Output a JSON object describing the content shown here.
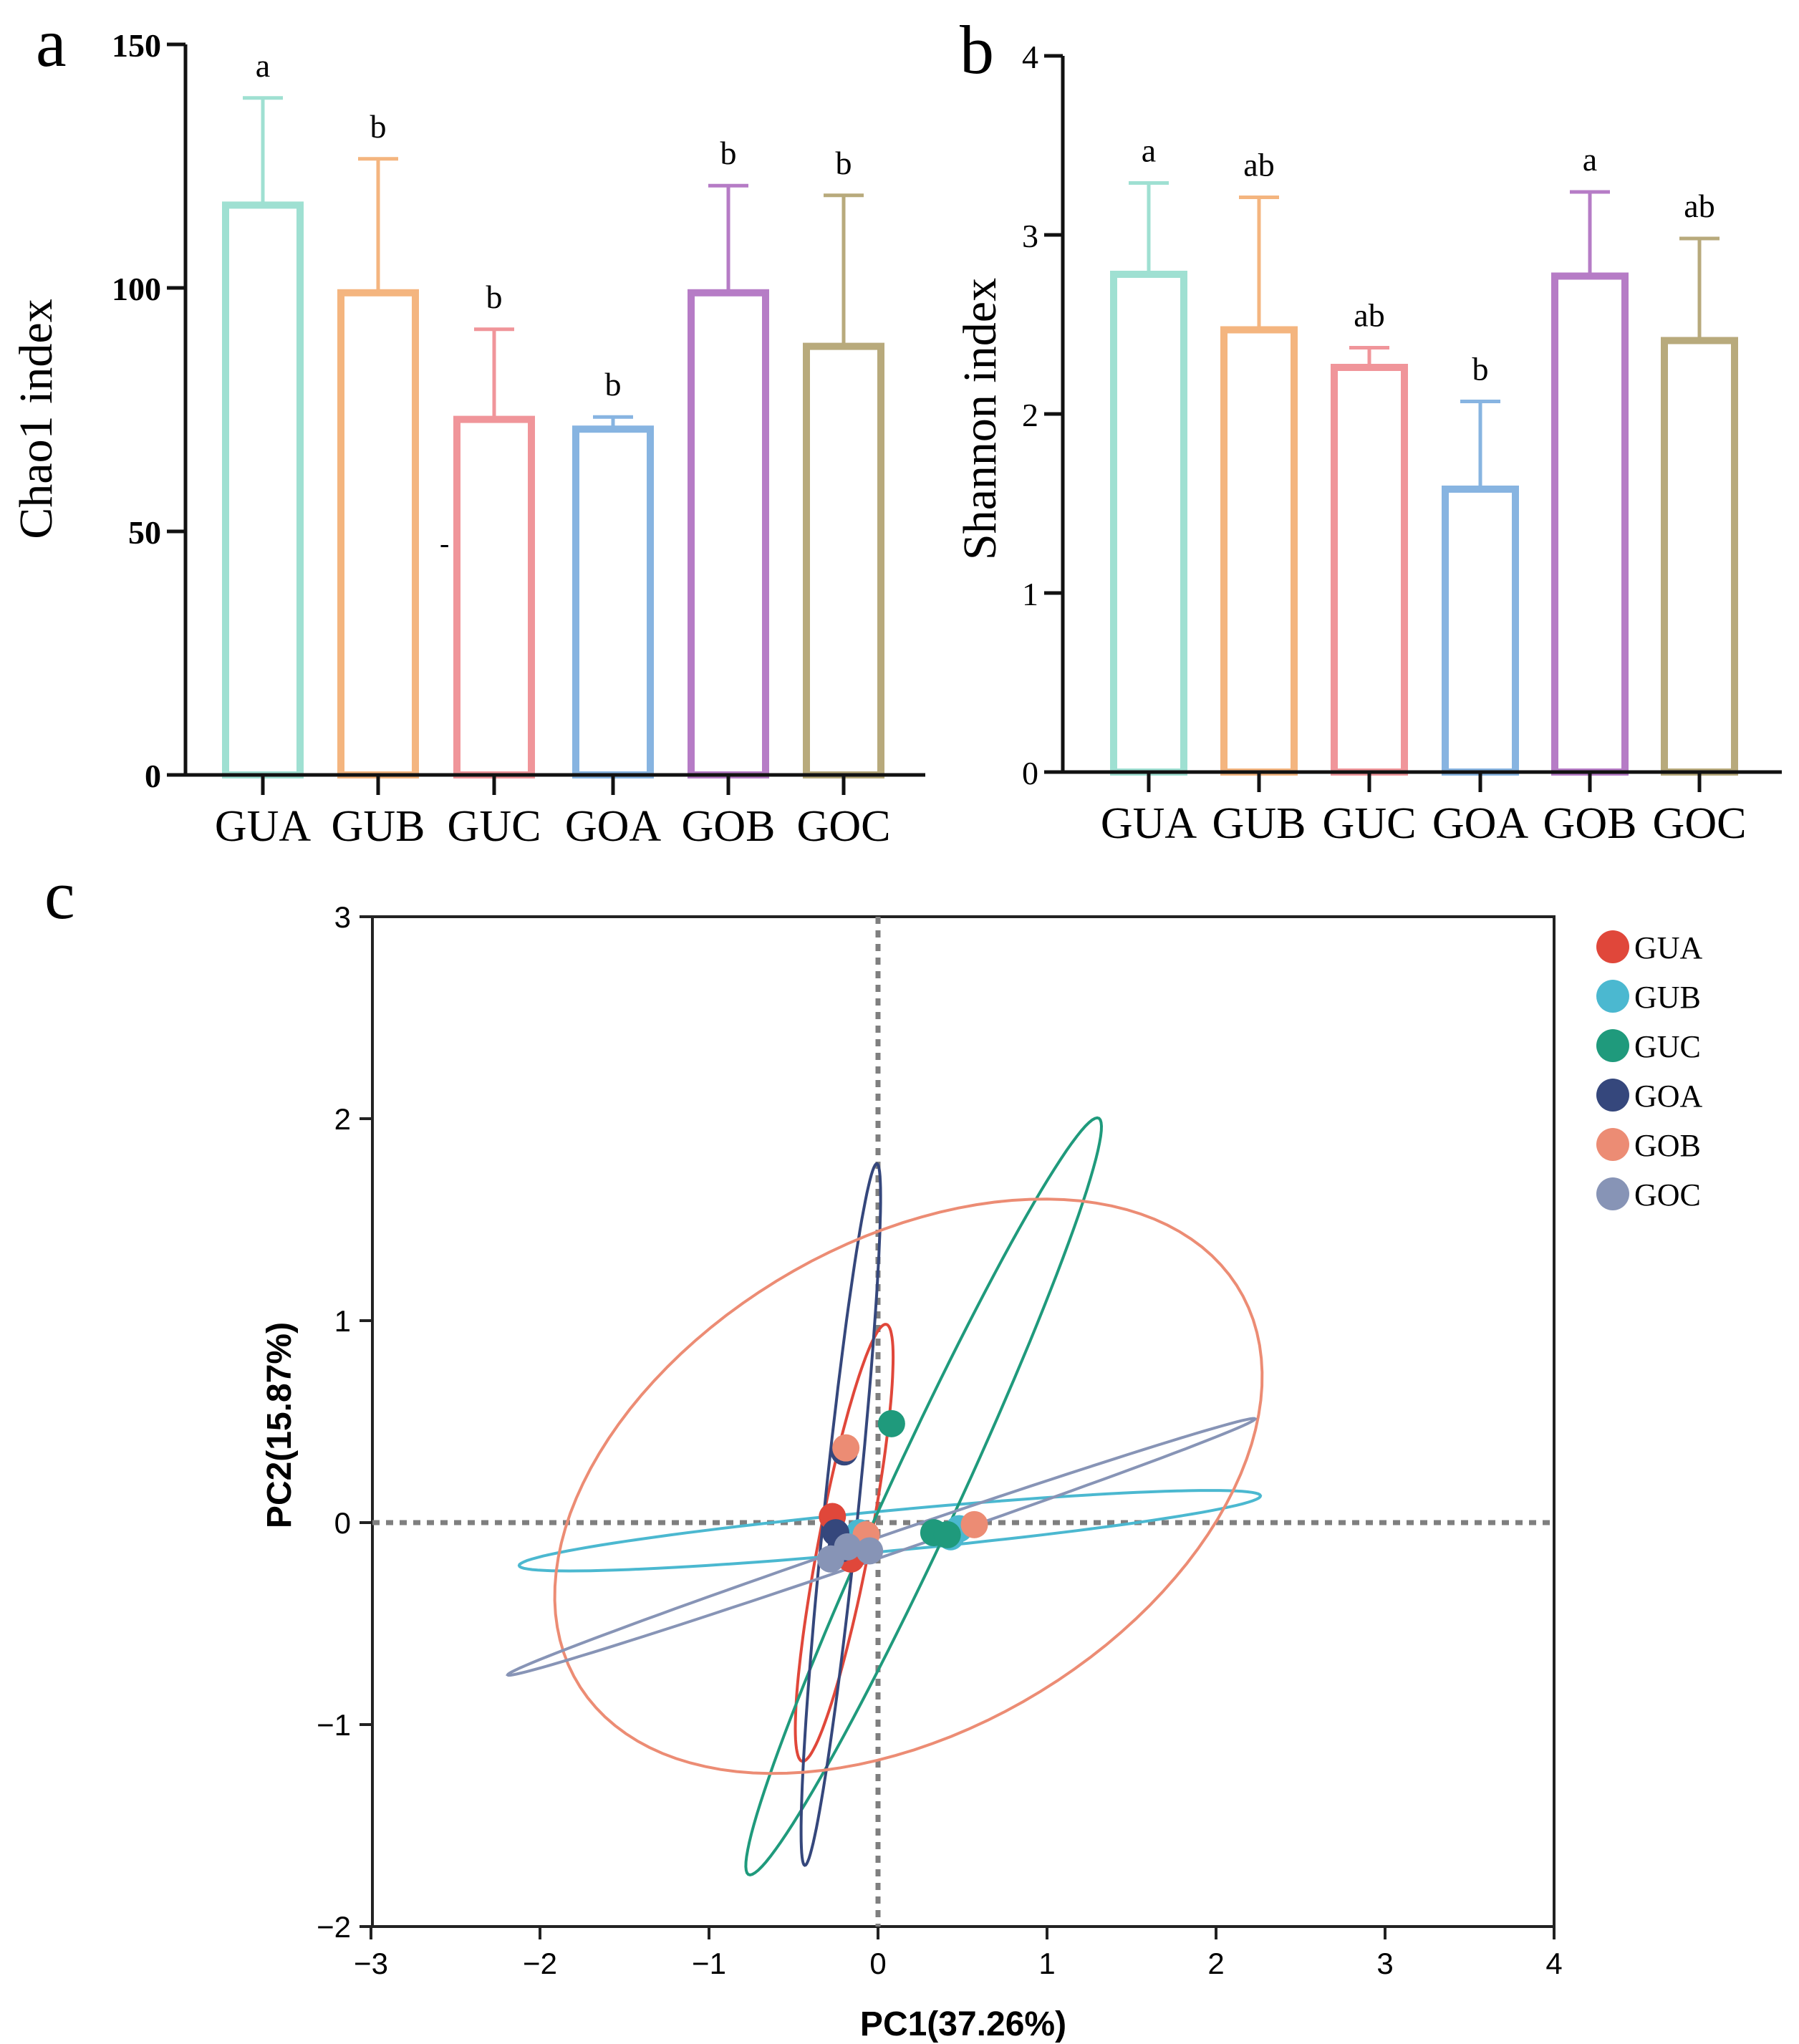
{
  "colors": {
    "axis": "#111111",
    "guide": "#7f7f7f",
    "GUA_bar": "#9fe0d2",
    "GUB_bar": "#f4b57f",
    "GUC_bar": "#f0959a",
    "GOA_bar": "#87b4e1",
    "GOB_bar": "#b67cc6",
    "GOC_bar": "#b8aa7c",
    "GUA_pt": "#e0473a",
    "GUB_pt": "#4bb8d0",
    "GUC_pt": "#1f9a7c",
    "GOA_pt": "#35477c",
    "GOB_pt": "#ec8c74",
    "GOC_pt": "#8794b6"
  },
  "chart_data": [
    {
      "panel": "a",
      "type": "bar",
      "categories": [
        "GUA",
        "GUB",
        "GUC",
        "GOA",
        "GOB",
        "GOC"
      ],
      "values": [
        117,
        99,
        73,
        71,
        99,
        88
      ],
      "errors": [
        22,
        27.5,
        18.5,
        2.5,
        22,
        31
      ],
      "letters": [
        "a",
        "b",
        "b",
        "b",
        "b",
        "b"
      ],
      "ylabel": "Chao1 index",
      "ylim": [
        0,
        150
      ],
      "yticks": [
        "0",
        "50",
        "100",
        "150"
      ],
      "stray_mark": "-"
    },
    {
      "panel": "b",
      "type": "bar",
      "categories": [
        "GUA",
        "GUB",
        "GUC",
        "GOA",
        "GOB",
        "GOC"
      ],
      "values": [
        2.78,
        2.47,
        2.26,
        1.58,
        2.77,
        2.41
      ],
      "errors": [
        0.51,
        0.74,
        0.11,
        0.49,
        0.47,
        0.57
      ],
      "letters": [
        "a",
        "ab",
        "ab",
        "b",
        "a",
        "ab"
      ],
      "ylabel": "Shannon index",
      "ylim": [
        0,
        4
      ],
      "yticks": [
        "0",
        "1",
        "2",
        "3",
        "4"
      ]
    },
    {
      "panel": "c",
      "type": "scatter",
      "xlabel": "PC1(37.26%)",
      "ylabel": "PC2(15.87%)",
      "xlim": [
        -3,
        4
      ],
      "ylim": [
        -2,
        3
      ],
      "xticks": [
        "−3",
        "−2",
        "−1",
        "0",
        "1",
        "2",
        "3",
        "4"
      ],
      "yticks": [
        "−2",
        "−1",
        "0",
        "1",
        "2",
        "3"
      ],
      "legend_position": "top-right",
      "series": [
        {
          "name": "GUA",
          "points": [
            [
              -0.27,
              0.03
            ],
            [
              -0.16,
              -0.18
            ],
            [
              -0.22,
              -0.08
            ]
          ],
          "ellipse": {
            "cx": -0.2,
            "cy": -0.1,
            "a": 1.11,
            "b": 0.15,
            "angle": 77
          }
        },
        {
          "name": "GUB",
          "points": [
            [
              0.48,
              -0.03
            ],
            [
              0.43,
              -0.07
            ],
            [
              -0.11,
              -0.05
            ]
          ],
          "ellipse": {
            "cx": 0.07,
            "cy": -0.04,
            "a": 2.2,
            "b": 0.1,
            "angle": 4.5
          }
        },
        {
          "name": "GUC",
          "points": [
            [
              0.08,
              0.49
            ],
            [
              0.33,
              -0.05
            ],
            [
              0.41,
              -0.06
            ]
          ],
          "ellipse": {
            "cx": 0.27,
            "cy": 0.13,
            "a": 2.14,
            "b": 0.2,
            "angle": 61
          }
        },
        {
          "name": "GOA",
          "points": [
            [
              -0.2,
              0.35
            ],
            [
              -0.25,
              -0.05
            ],
            [
              -0.22,
              -0.13
            ]
          ],
          "ellipse": {
            "cx": -0.22,
            "cy": 0.04,
            "a": 1.75,
            "b": 0.1,
            "angle": 83
          }
        },
        {
          "name": "GOB",
          "points": [
            [
              -0.19,
              0.37
            ],
            [
              0.57,
              -0.01
            ],
            [
              -0.07,
              -0.06
            ]
          ],
          "ellipse": {
            "cx": 0.18,
            "cy": 0.18,
            "a": 2.2,
            "b": 1.25,
            "angle": 22
          }
        },
        {
          "name": "GOC",
          "points": [
            [
              -0.28,
              -0.18
            ],
            [
              -0.05,
              -0.14
            ],
            [
              -0.18,
              -0.12
            ]
          ],
          "ellipse": {
            "cx": 0.02,
            "cy": -0.12,
            "a": 2.3,
            "b": 0.05,
            "angle": 16
          }
        }
      ]
    }
  ],
  "panel_labels": {
    "a": "a",
    "b": "b",
    "c": "c"
  }
}
